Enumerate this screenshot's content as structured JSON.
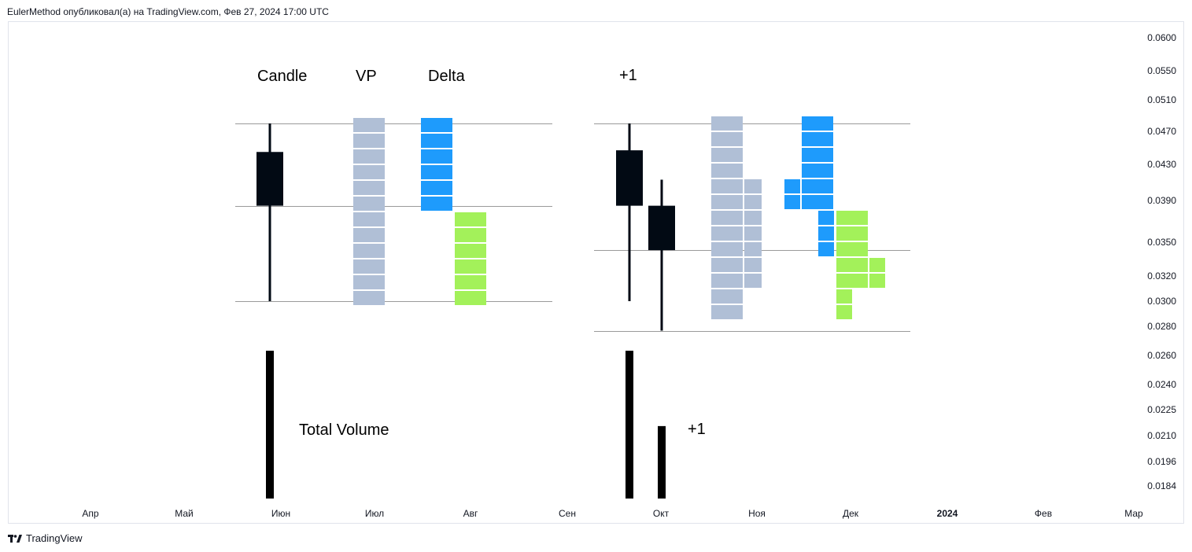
{
  "header": {
    "publication": "EulerMethod опубликовал(а) на TradingView.com, Фев 27, 2024 17:00 UTC"
  },
  "footer": {
    "brand": "TradingView"
  },
  "annotations": {
    "candle": "Candle",
    "vp": "VP",
    "delta": "Delta",
    "plus_one_top": "+1",
    "total_volume": "Total Volume",
    "plus_one_bottom": "+1"
  },
  "colors": {
    "candle": "#020a14",
    "volume_profile": "#b0bfd6",
    "delta_negative": "#1e9bfc",
    "delta_positive": "#a3f15a",
    "level_line": "#9a9a9a",
    "volume_bar": "#000000",
    "text": "#131722"
  },
  "chart_data": {
    "type": "bar",
    "title": "",
    "xlabel": "",
    "ylabel": "",
    "x_ticks": [
      "Апр",
      "Май",
      "Июн",
      "Июл",
      "Авг",
      "Сен",
      "Окт",
      "Ноя",
      "Дек",
      "2024",
      "Фев",
      "Мар"
    ],
    "x_ticks_bold": [
      "2024"
    ],
    "y_ticks": [
      "0.0600",
      "0.0550",
      "0.0510",
      "0.0470",
      "0.0430",
      "0.0390",
      "0.0350",
      "0.0320",
      "0.0300",
      "0.0280",
      "0.0260",
      "0.0240",
      "0.0225",
      "0.0210",
      "0.0196",
      "0.0184"
    ],
    "y_scale": "log",
    "ylim": [
      0.018,
      0.062
    ],
    "grid": false,
    "candles": [
      {
        "group": "left",
        "open": 0.0385,
        "close": 0.0445,
        "high": 0.048,
        "low": 0.03
      },
      {
        "group": "right",
        "open": 0.0447,
        "close": 0.0385,
        "high": 0.048,
        "low": 0.03
      },
      {
        "group": "right",
        "open": 0.0385,
        "close": 0.0343,
        "high": 0.0413,
        "low": 0.0277
      }
    ],
    "level_lines": [
      {
        "group": "left",
        "price": 0.048
      },
      {
        "group": "left",
        "price": 0.0385
      },
      {
        "group": "left",
        "price": 0.03
      },
      {
        "group": "right",
        "price": 0.048
      },
      {
        "group": "right",
        "price": 0.0343
      },
      {
        "group": "right",
        "price": 0.0277
      }
    ],
    "volume_profile": [
      {
        "group": "left",
        "levels": [
          1,
          1,
          1,
          1,
          1,
          1,
          1,
          1,
          1,
          1,
          1,
          1
        ]
      },
      {
        "group": "right",
        "levels": [
          1,
          1,
          1,
          1,
          2,
          2,
          2,
          2,
          2,
          2,
          2,
          1,
          1
        ]
      }
    ],
    "delta": [
      {
        "group": "left",
        "negative_levels": [
          1,
          1,
          1,
          1,
          1,
          1,
          0,
          0,
          0,
          0,
          0,
          0
        ],
        "positive_levels": [
          0,
          0,
          0,
          0,
          0,
          0,
          1,
          1,
          1,
          1,
          1,
          1
        ]
      },
      {
        "group": "right",
        "negative_levels": [
          1,
          1,
          1,
          1,
          2,
          2,
          1,
          1,
          1,
          0,
          0,
          0,
          0
        ],
        "positive_levels": [
          0,
          0,
          0,
          0,
          0,
          0,
          1,
          1,
          1,
          2,
          2,
          1,
          1
        ]
      }
    ],
    "total_volume": [
      {
        "group": "left",
        "bars": [
          1.0
        ]
      },
      {
        "group": "right",
        "bars": [
          1.0,
          0.49
        ]
      }
    ]
  }
}
